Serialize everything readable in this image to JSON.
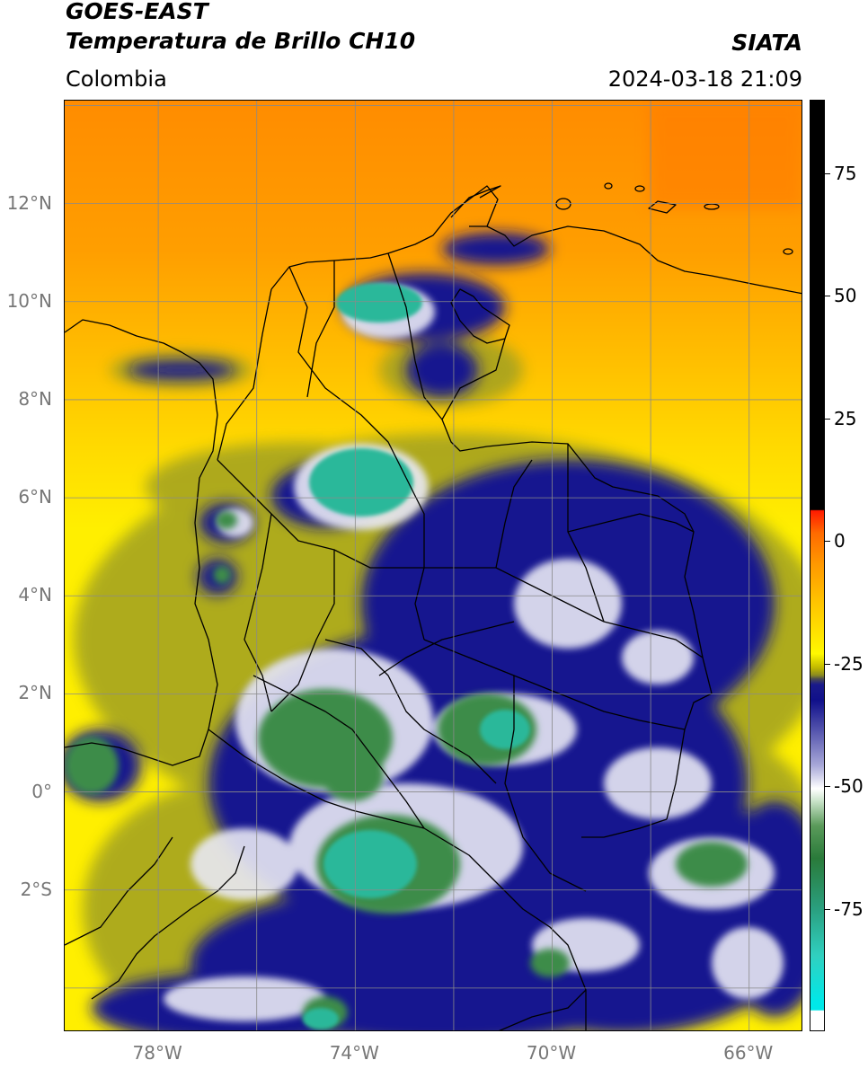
{
  "header": {
    "satellite": "GOES-EAST",
    "product": "Temperatura de Brillo CH10",
    "region": "Colombia",
    "organization": "SIATA",
    "datetime": "2024-03-18 21:09"
  },
  "map": {
    "lat_labels": [
      "12°N",
      "10°N",
      "8°N",
      "6°N",
      "4°N",
      "2°N",
      "0°",
      "2°S"
    ],
    "lat_values": [
      12,
      10,
      8,
      6,
      4,
      2,
      0,
      -2
    ],
    "lon_labels": [
      "78°W",
      "74°W",
      "70°W",
      "66°W"
    ],
    "lon_values": [
      -78,
      -74,
      -70,
      -66
    ],
    "extent": {
      "lon_min": -79.9,
      "lon_max": -64.9,
      "lat_min": -4.9,
      "lat_max": 14.1
    },
    "grid": true,
    "colors": {
      "warm": "#ff9500",
      "mid": "#ffee00",
      "olive": "#9a9a18",
      "deep_blue": "#13138e",
      "white": "#ffffff",
      "green": "#3a8a48",
      "teal": "#2bb89a",
      "border": "#000000"
    }
  },
  "colorbar": {
    "tick_labels": [
      "75",
      "50",
      "25",
      "0",
      "-25",
      "-50",
      "-75"
    ],
    "tick_values": [
      75,
      50,
      25,
      0,
      -25,
      -50,
      -75
    ],
    "range": [
      -100,
      90
    ]
  }
}
